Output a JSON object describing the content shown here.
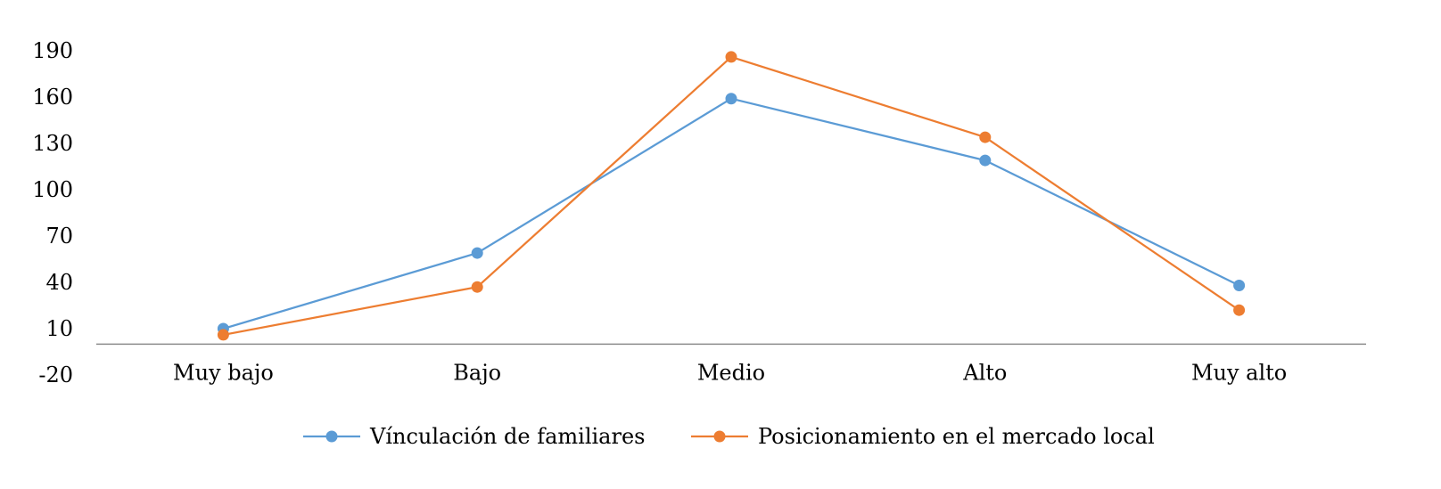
{
  "chart_data": {
    "type": "line",
    "categories": [
      "Muy bajo",
      "Bajo",
      "Medio",
      "Alto",
      "Muy alto"
    ],
    "yticks": [
      -20,
      10,
      40,
      70,
      100,
      130,
      160,
      190
    ],
    "ylim": [
      -20,
      210
    ],
    "grid": false,
    "legend": "bottom",
    "series": [
      {
        "name": "Vínculación de familiares",
        "color": "#5B9BD5",
        "values": [
          10,
          59,
          159,
          119,
          38
        ]
      },
      {
        "name": "Posicionamiento en el mercado local",
        "color": "#ED7D31",
        "values": [
          6,
          37,
          186,
          134,
          22
        ]
      }
    ]
  }
}
